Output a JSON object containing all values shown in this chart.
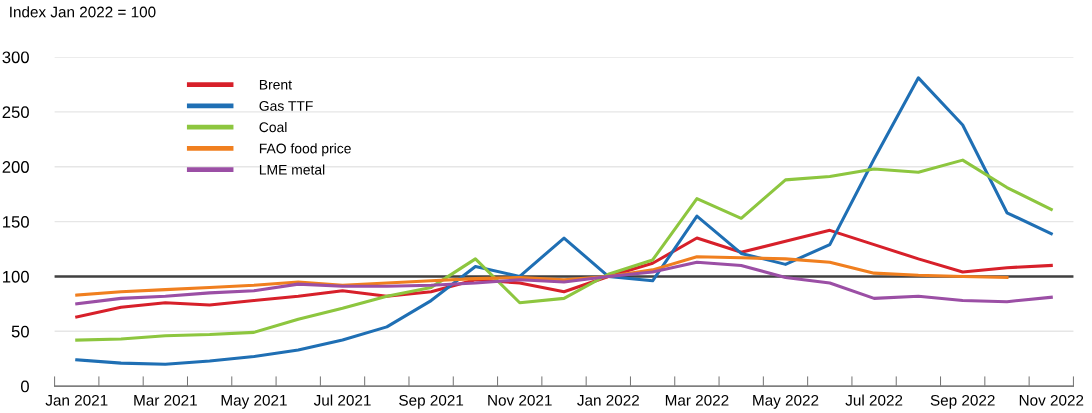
{
  "chart_data": {
    "type": "line",
    "ylabel": "Index Jan 2022 = 100",
    "categories": [
      "Jan 2021",
      null,
      "Mar 2021",
      null,
      "May 2021",
      null,
      "Jul 2021",
      null,
      "Sep 2021",
      null,
      "Nov 2021",
      null,
      "Jan 2022",
      null,
      "Mar 2022",
      null,
      "May 2022",
      null,
      "Jul 2022",
      null,
      "Sep 2022",
      null,
      "Nov 2022"
    ],
    "series": [
      {
        "name": "Brent",
        "color": "#d7202a",
        "values": [
          63,
          72,
          76,
          74,
          78,
          82,
          87,
          82,
          86,
          97,
          94,
          86,
          100,
          112,
          135,
          122,
          132,
          142,
          129,
          116,
          104,
          108,
          110
        ]
      },
      {
        "name": "Gas TTF",
        "color": "#1f6fb4",
        "values": [
          24,
          21,
          20,
          23,
          27,
          33,
          42,
          54,
          78,
          109,
          100,
          135,
          100,
          96,
          155,
          121,
          111,
          129,
          207,
          281,
          238,
          158,
          139
        ]
      },
      {
        "name": "Coal",
        "color": "#8dc63f",
        "values": [
          42,
          43,
          46,
          47,
          49,
          61,
          71,
          82,
          90,
          116,
          76,
          80,
          102,
          115,
          171,
          153,
          188,
          191,
          198,
          195,
          206,
          181,
          161
        ]
      },
      {
        "name": "FAO food price",
        "color": "#f07f1f",
        "values": [
          83,
          86,
          88,
          90,
          92,
          95,
          92,
          94,
          96,
          98,
          99,
          97,
          100,
          106,
          118,
          117,
          116,
          113,
          103,
          101,
          100,
          99,
          null
        ]
      },
      {
        "name": "LME metal",
        "color": "#9b4fa5",
        "values": [
          75,
          80,
          82,
          85,
          87,
          93,
          91,
          91,
          92,
          94,
          97,
          95,
          100,
          104,
          113,
          110,
          99,
          94,
          80,
          82,
          78,
          77,
          81
        ]
      }
    ],
    "ylim": [
      0,
      300
    ],
    "yticks": [
      0,
      50,
      100,
      150,
      200,
      250,
      300
    ],
    "ref_lines": [
      {
        "axis": "y",
        "value": 100,
        "color": "#404040"
      }
    ],
    "grid": "y",
    "legend": "top left",
    "marker": "none",
    "line_style": "solid"
  }
}
